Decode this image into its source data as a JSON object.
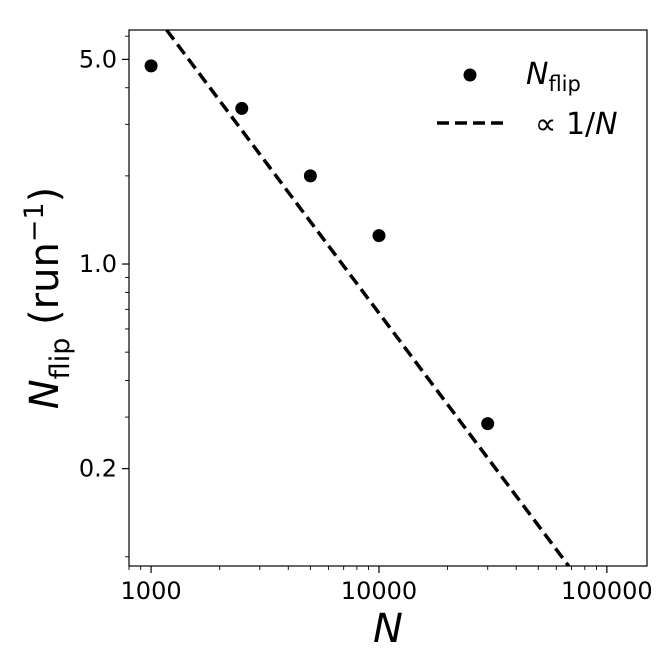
{
  "chart_data": {
    "type": "scatter",
    "xscale": "log",
    "yscale": "log",
    "xlim": [
      800,
      150000
    ],
    "ylim": [
      0.093,
      6.3
    ],
    "xticks": [
      1000,
      10000,
      100000
    ],
    "xtick_labels": [
      "1000",
      "10000",
      "100000"
    ],
    "yticks": [
      0.2,
      1.0,
      5.0
    ],
    "ytick_labels": [
      "0.2",
      "1.0",
      "5.0"
    ],
    "xlabel": "N",
    "ylabel_main": "N",
    "ylabel_sub": "flip",
    "ylabel_unit_open": " (run",
    "ylabel_unit_exp": "−1",
    "ylabel_unit_close": ")",
    "grid": false,
    "legend_position": "top-right",
    "series": [
      {
        "name_main": "N",
        "name_sub": "flip",
        "kind": "scatter",
        "color": "#000000",
        "x": [
          1000,
          2500,
          5000,
          10000,
          30000
        ],
        "y": [
          4.75,
          3.4,
          2.0,
          1.25,
          0.285
        ]
      },
      {
        "name_prefix": "∝ 1/",
        "name_var": "N",
        "kind": "line",
        "dash": "dashed",
        "color": "#000000",
        "x": [
          1170,
          68000
        ],
        "y": [
          6.3,
          0.093
        ]
      }
    ]
  }
}
